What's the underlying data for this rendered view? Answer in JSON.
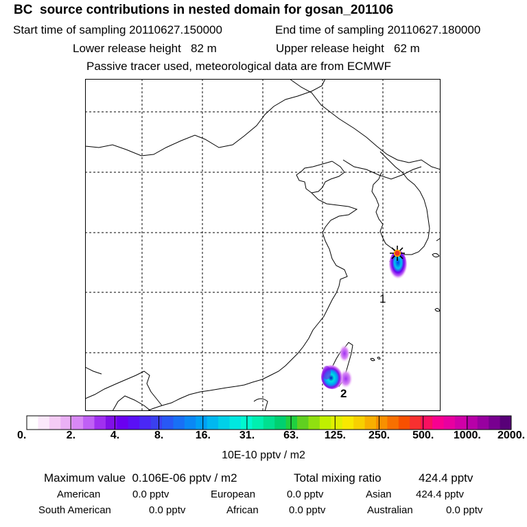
{
  "header": {
    "title": "BC  source contributions in nested domain for gosan_201106",
    "start_time": "Start time of sampling 20110627.150000",
    "end_time": "End time of sampling 20110627.180000",
    "lower_release": "Lower release height   82 m",
    "upper_release": "Upper release height   62 m",
    "tracer_info": "Passive tracer used, meteorological data are from ECMWF"
  },
  "map": {
    "receptor_marker": "star-receptor",
    "labels": [
      "1",
      "2"
    ]
  },
  "colorbar": {
    "tick_labels": [
      "0.",
      "2.",
      "4.",
      "8.",
      "16.",
      "31.",
      "63.",
      "125.",
      "250.",
      "500.",
      "1000.",
      "2000."
    ],
    "colors": [
      "#ffffff",
      "#fbe8fb",
      "#f5ccf5",
      "#eab0f5",
      "#d888f5",
      "#c060f5",
      "#a030f0",
      "#8010e8",
      "#6a00f0",
      "#5a10f5",
      "#4a28f5",
      "#3a40f0",
      "#2858f5",
      "#1870f5",
      "#0a88f5",
      "#00a0f5",
      "#00b8f0",
      "#00d0e8",
      "#00e8e0",
      "#00f8d0",
      "#00f0b0",
      "#00e090",
      "#00d070",
      "#20d040",
      "#60d020",
      "#90e010",
      "#c0f000",
      "#e0f000",
      "#f8e800",
      "#f8d000",
      "#f8b000",
      "#f89000",
      "#f87000",
      "#f85000",
      "#f83030",
      "#f81060",
      "#f80090",
      "#e800a0",
      "#d000a8",
      "#b800a8",
      "#9800a0",
      "#780090",
      "#580078"
    ],
    "units": "10E-10 pptv / m2"
  },
  "summary": {
    "max_value": "Maximum value  0.106E-06 pptv / m2",
    "total_mixing": "Total mixing ratio",
    "total_mixing_value": "424.4 pptv",
    "american_label": "American",
    "american_value": "0.0 pptv",
    "european_label": "European",
    "european_value": "0.0 pptv",
    "asian_label": "Asian",
    "asian_value": "424.4 pptv",
    "south_american_label": "South American",
    "south_american_value": "0.0 pptv",
    "african_label": "African",
    "african_value": "0.0 pptv",
    "australian_label": "Australian",
    "australian_value": "0.0 pptv"
  }
}
